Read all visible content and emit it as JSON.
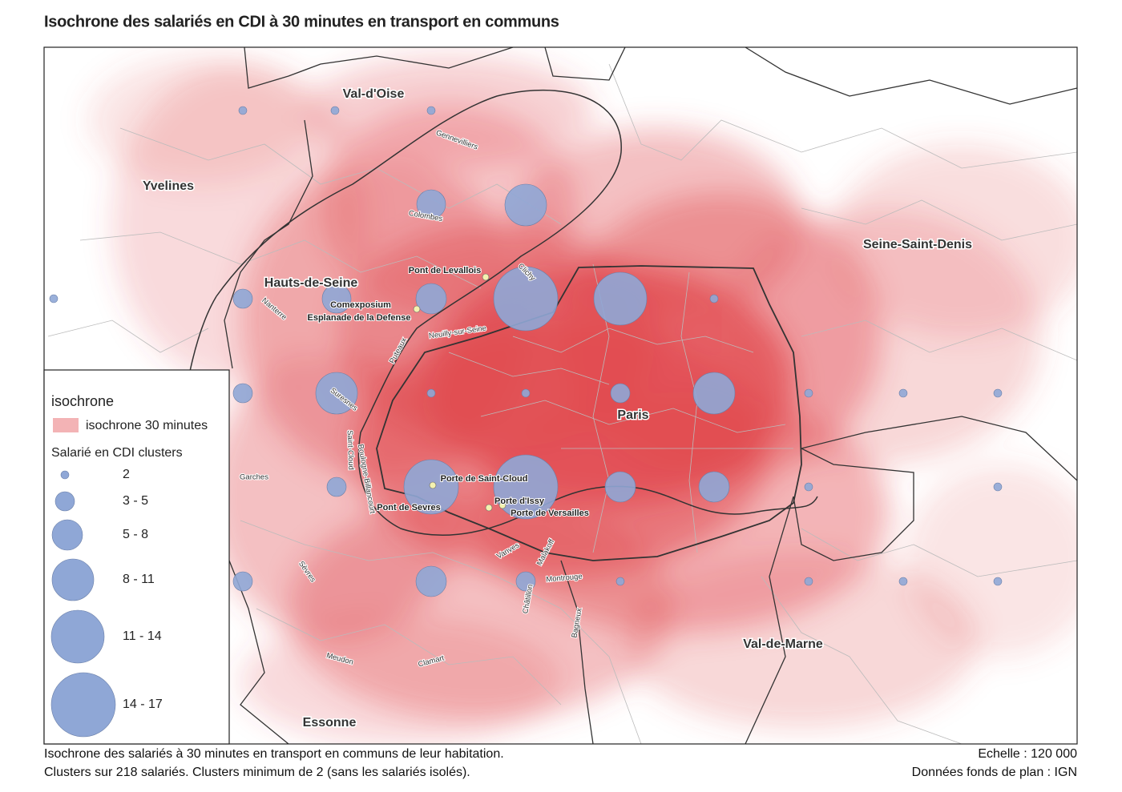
{
  "title": "Isochrone des salariés en CDI à 30 minutes en transport en communs",
  "map": {
    "departments": [
      "Val-d'Oise",
      "Yvelines",
      "Hauts-de-Seine",
      "Seine-Saint-Denis",
      "Paris",
      "Val-de-Marne",
      "Essonne"
    ],
    "communes": [
      "Gennevilliers",
      "Colombes",
      "Clichy",
      "Nanterre",
      "Neuilly-sur-Seine",
      "Puteaux",
      "Suresnes",
      "Saint-Cloud",
      "Boulogne-Billancourt",
      "Garches",
      "Sèvres",
      "Vanves",
      "Malakoff",
      "Montrouge",
      "Châtillon",
      "Bagneux",
      "Meudon",
      "Clamart"
    ],
    "places": [
      "Pont de Levallois",
      "Comexposium",
      "Esplanade de la Defense",
      "Porte de Saint-Cloud",
      "Pont de Sevres",
      "Porte d'Issy",
      "Porte de Versailles"
    ]
  },
  "legend": {
    "title": "isochrone",
    "isochrone_label": "isochrone 30 minutes",
    "clusters_title": "Salarié en CDI clusters",
    "classes": [
      "2",
      "3 - 5",
      "5 - 8",
      "8 - 11",
      "11 - 14",
      "14 - 17"
    ]
  },
  "footer": {
    "lines": [
      "Isochrone des salariés à 30 minutes en transport en communs de leur habitation.",
      "Clusters sur 218 salariés. Clusters minimum de 2 (sans les salariés isolés)."
    ],
    "scale": "Echelle : 120 000",
    "source": "Données fonds de plan : IGN"
  }
}
